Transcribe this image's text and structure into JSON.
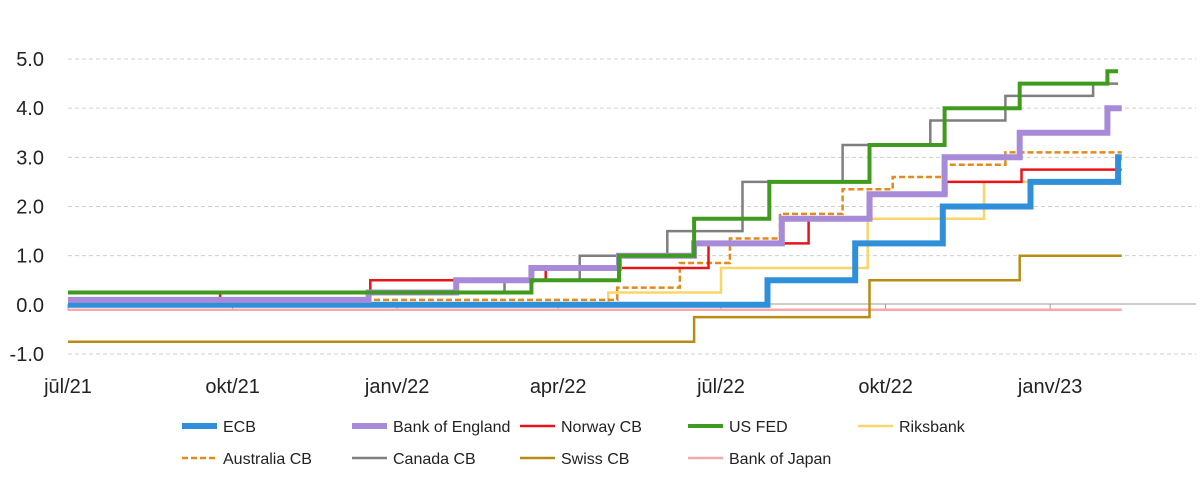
{
  "chart_data": {
    "type": "line",
    "title": "",
    "xlabel": "",
    "ylabel": "",
    "ylim": [
      -1.0,
      5.0
    ],
    "y_ticks": [
      -1.0,
      0.0,
      1.0,
      2.0,
      3.0,
      4.0,
      5.0
    ],
    "y_tick_labels": [
      "-1.0",
      "0.0",
      "1.0",
      "2.0",
      "3.0",
      "4.0",
      "5.0"
    ],
    "x_range": [
      "2021-07-01",
      "2023-04-15"
    ],
    "x_ticks": [
      "2021-07-01",
      "2021-10-01",
      "2022-01-01",
      "2022-04-01",
      "2022-07-01",
      "2022-10-01",
      "2023-01-01"
    ],
    "x_tick_labels": [
      "jūl/21",
      "okt/21",
      "janv/22",
      "apr/22",
      "jūl/22",
      "okt/22",
      "janv/23"
    ],
    "grid": "horizontal dashed",
    "legend_position": "bottom",
    "series": [
      {
        "name": "ECB",
        "color": "#2f8fd8",
        "style": "solid",
        "weight": "thick",
        "points": [
          [
            "2021-07-01",
            0
          ],
          [
            "2022-07-27",
            0.5
          ],
          [
            "2022-09-14",
            1.25
          ],
          [
            "2022-11-02",
            2.0
          ],
          [
            "2022-12-21",
            2.5
          ],
          [
            "2023-02-08",
            3.0
          ],
          [
            "2023-02-10",
            3.0
          ]
        ]
      },
      {
        "name": "Bank of England",
        "color": "#a78bd9",
        "style": "solid",
        "weight": "thick",
        "points": [
          [
            "2021-07-01",
            0.1
          ],
          [
            "2021-12-16",
            0.25
          ],
          [
            "2022-02-03",
            0.5
          ],
          [
            "2022-03-17",
            0.75
          ],
          [
            "2022-05-05",
            1.0
          ],
          [
            "2022-06-16",
            1.25
          ],
          [
            "2022-08-04",
            1.75
          ],
          [
            "2022-09-22",
            2.25
          ],
          [
            "2022-11-03",
            3.0
          ],
          [
            "2022-12-15",
            3.5
          ],
          [
            "2023-02-02",
            4.0
          ],
          [
            "2023-02-10",
            4.0
          ]
        ]
      },
      {
        "name": "Norway CB",
        "color": "#e8141c",
        "style": "solid",
        "weight": "normal",
        "points": [
          [
            "2021-07-01",
            0
          ],
          [
            "2021-09-24",
            0.25
          ],
          [
            "2021-12-17",
            0.5
          ],
          [
            "2022-03-25",
            0.75
          ],
          [
            "2022-06-24",
            1.25
          ],
          [
            "2022-08-19",
            1.75
          ],
          [
            "2022-09-23",
            2.25
          ],
          [
            "2022-11-04",
            2.5
          ],
          [
            "2022-12-16",
            2.75
          ],
          [
            "2023-02-10",
            2.75
          ]
        ]
      },
      {
        "name": "US FED",
        "color": "#3f9b1d",
        "style": "solid",
        "weight": "medium",
        "points": [
          [
            "2021-07-01",
            0.25
          ],
          [
            "2022-03-17",
            0.5
          ],
          [
            "2022-05-05",
            1.0
          ],
          [
            "2022-06-16",
            1.75
          ],
          [
            "2022-07-28",
            2.5
          ],
          [
            "2022-09-22",
            3.25
          ],
          [
            "2022-11-03",
            4.0
          ],
          [
            "2022-12-15",
            4.5
          ],
          [
            "2023-02-02",
            4.75
          ],
          [
            "2023-02-08",
            4.75
          ]
        ]
      },
      {
        "name": "Riksbank",
        "color": "#f9d56a",
        "style": "solid",
        "weight": "normal",
        "points": [
          [
            "2021-07-01",
            0
          ],
          [
            "2022-04-29",
            0.25
          ],
          [
            "2022-07-01",
            0.75
          ],
          [
            "2022-09-21",
            1.75
          ],
          [
            "2022-11-25",
            2.5
          ],
          [
            "2023-02-10",
            2.5
          ]
        ]
      },
      {
        "name": "Australia CB",
        "color": "#e38a1a",
        "style": "dashed",
        "weight": "normal",
        "points": [
          [
            "2021-07-01",
            0.1
          ],
          [
            "2022-05-04",
            0.35
          ],
          [
            "2022-06-08",
            0.85
          ],
          [
            "2022-07-06",
            1.35
          ],
          [
            "2022-08-03",
            1.85
          ],
          [
            "2022-09-07",
            2.35
          ],
          [
            "2022-10-05",
            2.6
          ],
          [
            "2022-11-02",
            2.85
          ],
          [
            "2022-12-07",
            3.1
          ],
          [
            "2023-02-10",
            3.1
          ]
        ]
      },
      {
        "name": "Canada CB",
        "color": "#7f7f7f",
        "style": "solid",
        "weight": "normal",
        "points": [
          [
            "2021-07-01",
            0.25
          ],
          [
            "2022-03-02",
            0.5
          ],
          [
            "2022-04-13",
            1.0
          ],
          [
            "2022-06-01",
            1.5
          ],
          [
            "2022-07-13",
            2.5
          ],
          [
            "2022-09-07",
            3.25
          ],
          [
            "2022-10-26",
            3.75
          ],
          [
            "2022-12-07",
            4.25
          ],
          [
            "2023-01-25",
            4.5
          ],
          [
            "2023-02-08",
            4.5
          ]
        ]
      },
      {
        "name": "Swiss CB",
        "color": "#b88c14",
        "style": "solid",
        "weight": "normal",
        "points": [
          [
            "2021-07-01",
            -0.75
          ],
          [
            "2022-06-16",
            -0.25
          ],
          [
            "2022-09-22",
            0.5
          ],
          [
            "2022-12-15",
            1.0
          ],
          [
            "2023-02-10",
            1.0
          ]
        ]
      },
      {
        "name": "Bank of Japan",
        "color": "#f4a8a8",
        "style": "solid",
        "weight": "normal",
        "points": [
          [
            "2021-07-01",
            -0.1
          ],
          [
            "2023-02-10",
            -0.1
          ]
        ]
      }
    ]
  }
}
